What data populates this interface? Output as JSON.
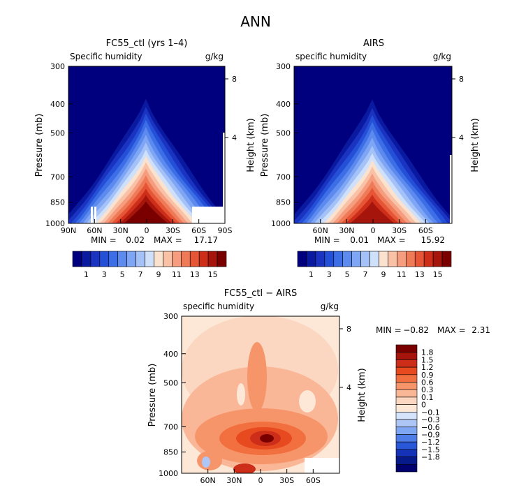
{
  "page_title": "ANN",
  "chart_data": [
    {
      "type": "heatmap",
      "title": "FC55_ctl (yrs 1–4)",
      "subtitle_left": "Specific humidity",
      "subtitle_right": "g/kg",
      "ylabel": "Pressure (mb)",
      "ylabel_right": "Height (km)",
      "x_ticks": [
        "90N",
        "60N",
        "30N",
        "0",
        "30S",
        "60S",
        "90S"
      ],
      "y_ticks": [
        "300",
        "400",
        "500",
        "700",
        "850",
        "1000"
      ],
      "y_ticks_right": [
        "8",
        "4"
      ],
      "min_label": "MIN =",
      "min_value": "0.02",
      "max_label": "MAX =",
      "max_value": "17.17",
      "colorbar_labels": [
        "1",
        "3",
        "5",
        "7",
        "9",
        "11",
        "13",
        "15"
      ],
      "peak_value": 17.17
    },
    {
      "type": "heatmap",
      "title": "AIRS",
      "subtitle_left": "specific humidity",
      "subtitle_right": "g/kg",
      "ylabel": "Pressure (mb)",
      "ylabel_right": "Height (km)",
      "x_ticks": [
        "60N",
        "30N",
        "0",
        "30S",
        "60S"
      ],
      "y_ticks": [
        "300",
        "400",
        "500",
        "700",
        "850",
        "1000"
      ],
      "y_ticks_right": [
        "8",
        "4"
      ],
      "min_label": "MIN =",
      "min_value": "0.01",
      "max_label": "MAX =",
      "max_value": "15.92",
      "colorbar_labels": [
        "1",
        "3",
        "5",
        "7",
        "9",
        "11",
        "13",
        "15"
      ],
      "peak_value": 15.92
    },
    {
      "type": "heatmap",
      "title": "FC55_ctl − AIRS",
      "subtitle_left": "specific humidity",
      "subtitle_right": "g/kg",
      "ylabel": "Pressure (mb)",
      "ylabel_right": "Height (km)",
      "x_ticks": [
        "60N",
        "30N",
        "0",
        "30S",
        "60S"
      ],
      "y_ticks": [
        "300",
        "400",
        "500",
        "700",
        "850",
        "1000"
      ],
      "y_ticks_right": [
        "8",
        "4"
      ],
      "min_label": "MIN =",
      "min_value": "−0.82",
      "max_label": "MAX =",
      "max_value": "2.31",
      "colorbar_labels": [
        "1.8",
        "1.5",
        "1.2",
        "0.9",
        "0.6",
        "0.3",
        "0.1",
        "0",
        "−0.1",
        "−0.3",
        "−0.6",
        "−0.9",
        "−1.2",
        "−1.5",
        "−1.8"
      ]
    }
  ],
  "colors": {
    "abs_scale": [
      "#00007f",
      "#0a1aa0",
      "#1a33c0",
      "#2450d8",
      "#3d6ee6",
      "#5c8aee",
      "#7ea6f4",
      "#a4c2f8",
      "#cfe0fb",
      "#fbe2cf",
      "#f9c2a6",
      "#f59d7e",
      "#ef7a58",
      "#e65535",
      "#cc2e1a",
      "#a5150b",
      "#7a0000"
    ],
    "diff_scale": [
      "#7a0000",
      "#a5150b",
      "#cc2e1a",
      "#e84a1f",
      "#f2703f",
      "#f7956a",
      "#f9b797",
      "#fbd6c0",
      "#fde8d8",
      "#d6e4fb",
      "#aec6f6",
      "#7ea6f2",
      "#4f7de8",
      "#2a57d8",
      "#1433b8",
      "#061a8a",
      "#00006e"
    ]
  }
}
